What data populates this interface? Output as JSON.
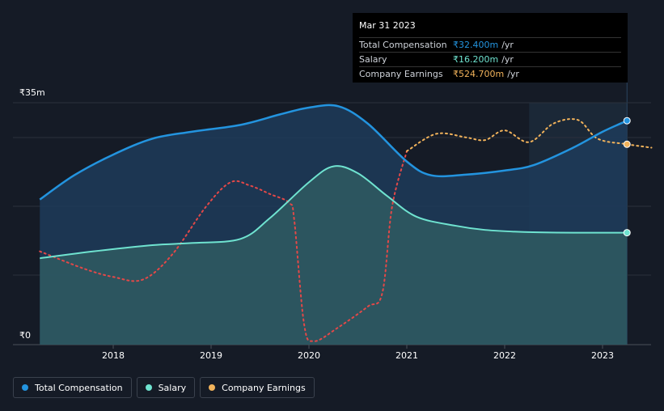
{
  "chart_data": {
    "type": "line",
    "x_ticks": [
      "2018",
      "2019",
      "2020",
      "2021",
      "2022",
      "2023"
    ],
    "y_labels": [
      "₹35m",
      "₹0"
    ],
    "ylim": [
      0,
      35
    ],
    "series": [
      {
        "name": "Total Compensation",
        "color": "#2394df",
        "points": [
          [
            2017.25,
            21
          ],
          [
            2017.6,
            24.5
          ],
          [
            2018.0,
            27.5
          ],
          [
            2018.4,
            29.8
          ],
          [
            2018.8,
            30.8
          ],
          [
            2019.3,
            31.8
          ],
          [
            2019.7,
            33.3
          ],
          [
            2020.0,
            34.3
          ],
          [
            2020.3,
            34.5
          ],
          [
            2020.6,
            32.0
          ],
          [
            2021.0,
            26.5
          ],
          [
            2021.25,
            24.5
          ],
          [
            2021.6,
            24.6
          ],
          [
            2022.0,
            25.2
          ],
          [
            2022.3,
            26.0
          ],
          [
            2022.7,
            28.5
          ],
          [
            2023.0,
            30.8
          ],
          [
            2023.25,
            32.4
          ]
        ]
      },
      {
        "name": "Salary",
        "color": "#6fe3d0",
        "points": [
          [
            2017.25,
            12.5
          ],
          [
            2017.8,
            13.5
          ],
          [
            2018.4,
            14.4
          ],
          [
            2018.8,
            14.7
          ],
          [
            2019.3,
            15.3
          ],
          [
            2019.6,
            18.3
          ],
          [
            2020.0,
            23.5
          ],
          [
            2020.25,
            25.8
          ],
          [
            2020.5,
            24.8
          ],
          [
            2020.8,
            21.5
          ],
          [
            2021.1,
            18.5
          ],
          [
            2021.5,
            17.2
          ],
          [
            2021.8,
            16.6
          ],
          [
            2022.2,
            16.3
          ],
          [
            2022.7,
            16.2
          ],
          [
            2023.25,
            16.2
          ]
        ]
      },
      {
        "name": "Company Earnings",
        "color": "#f2b35b",
        "type": "line",
        "points": [
          [
            2021.0,
            28.0
          ],
          [
            2021.3,
            30.5
          ],
          [
            2021.6,
            30.0
          ],
          [
            2021.8,
            29.6
          ],
          [
            2022.0,
            31.0
          ],
          [
            2022.25,
            29.3
          ],
          [
            2022.5,
            32.0
          ],
          [
            2022.75,
            32.5
          ],
          [
            2022.95,
            29.8
          ],
          [
            2023.25,
            29.0
          ],
          [
            2023.5,
            28.5
          ]
        ]
      }
    ],
    "earnings_red_points": [
      [
        2017.25,
        13.5
      ],
      [
        2017.7,
        11.0
      ],
      [
        2018.0,
        9.8
      ],
      [
        2018.3,
        9.4
      ],
      [
        2018.6,
        13.0
      ],
      [
        2018.95,
        20.0
      ],
      [
        2019.2,
        23.5
      ],
      [
        2019.4,
        23.0
      ],
      [
        2019.6,
        21.8
      ],
      [
        2019.8,
        20.5
      ],
      [
        2019.85,
        18.0
      ],
      [
        2019.95,
        3.0
      ],
      [
        2020.05,
        0.5
      ],
      [
        2020.3,
        2.5
      ],
      [
        2020.6,
        5.5
      ],
      [
        2020.75,
        7.5
      ],
      [
        2020.85,
        20.0
      ],
      [
        2021.0,
        28.0
      ]
    ],
    "red_color": "#e34848",
    "highlight_x": 2023.25,
    "forecast_start": 2022.25
  },
  "tooltip": {
    "date": "Mar 31 2023",
    "rows": [
      {
        "label": "Total Compensation",
        "value": "₹32.400m",
        "unit": "/yr"
      },
      {
        "label": "Salary",
        "value": "₹16.200m",
        "unit": "/yr"
      },
      {
        "label": "Company Earnings",
        "value": "₹524.700m",
        "unit": "/yr"
      }
    ]
  },
  "legend": [
    {
      "label": "Total Compensation",
      "color": "#2394df"
    },
    {
      "label": "Salary",
      "color": "#6fe3d0"
    },
    {
      "label": "Company Earnings",
      "color": "#f2b35b"
    }
  ]
}
